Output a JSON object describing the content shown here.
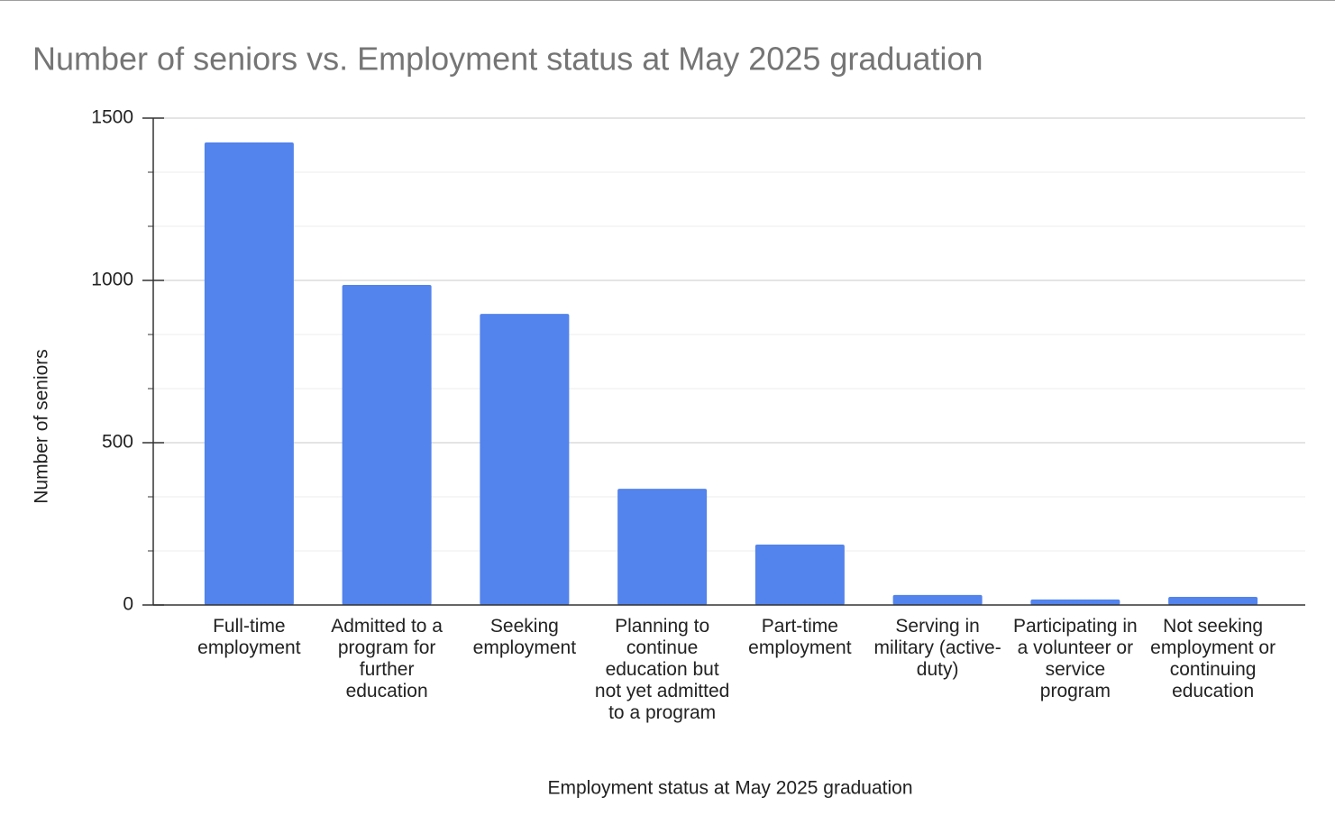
{
  "chart_data": {
    "type": "bar",
    "title": "Number of seniors vs. Employment status at May 2025 graduation",
    "x_label": "Employment status at May 2025 graduation",
    "y_label": "Number of seniors",
    "categories": [
      "Full-time employment",
      "Admitted to a program for further education",
      "Seeking employment",
      "Planning to continue education but not yet admitted to a program",
      "Part-time employment",
      "Serving in military (active-duty)",
      "Participating in a volunteer or service program",
      "Not seeking employment or continuing education"
    ],
    "values": [
      1425,
      986,
      897,
      358,
      186,
      31,
      17,
      25
    ],
    "color": "#5383ec",
    "ylim": [
      0,
      1500
    ],
    "yticks": [
      0,
      500,
      1000,
      1500
    ],
    "grid": true
  }
}
